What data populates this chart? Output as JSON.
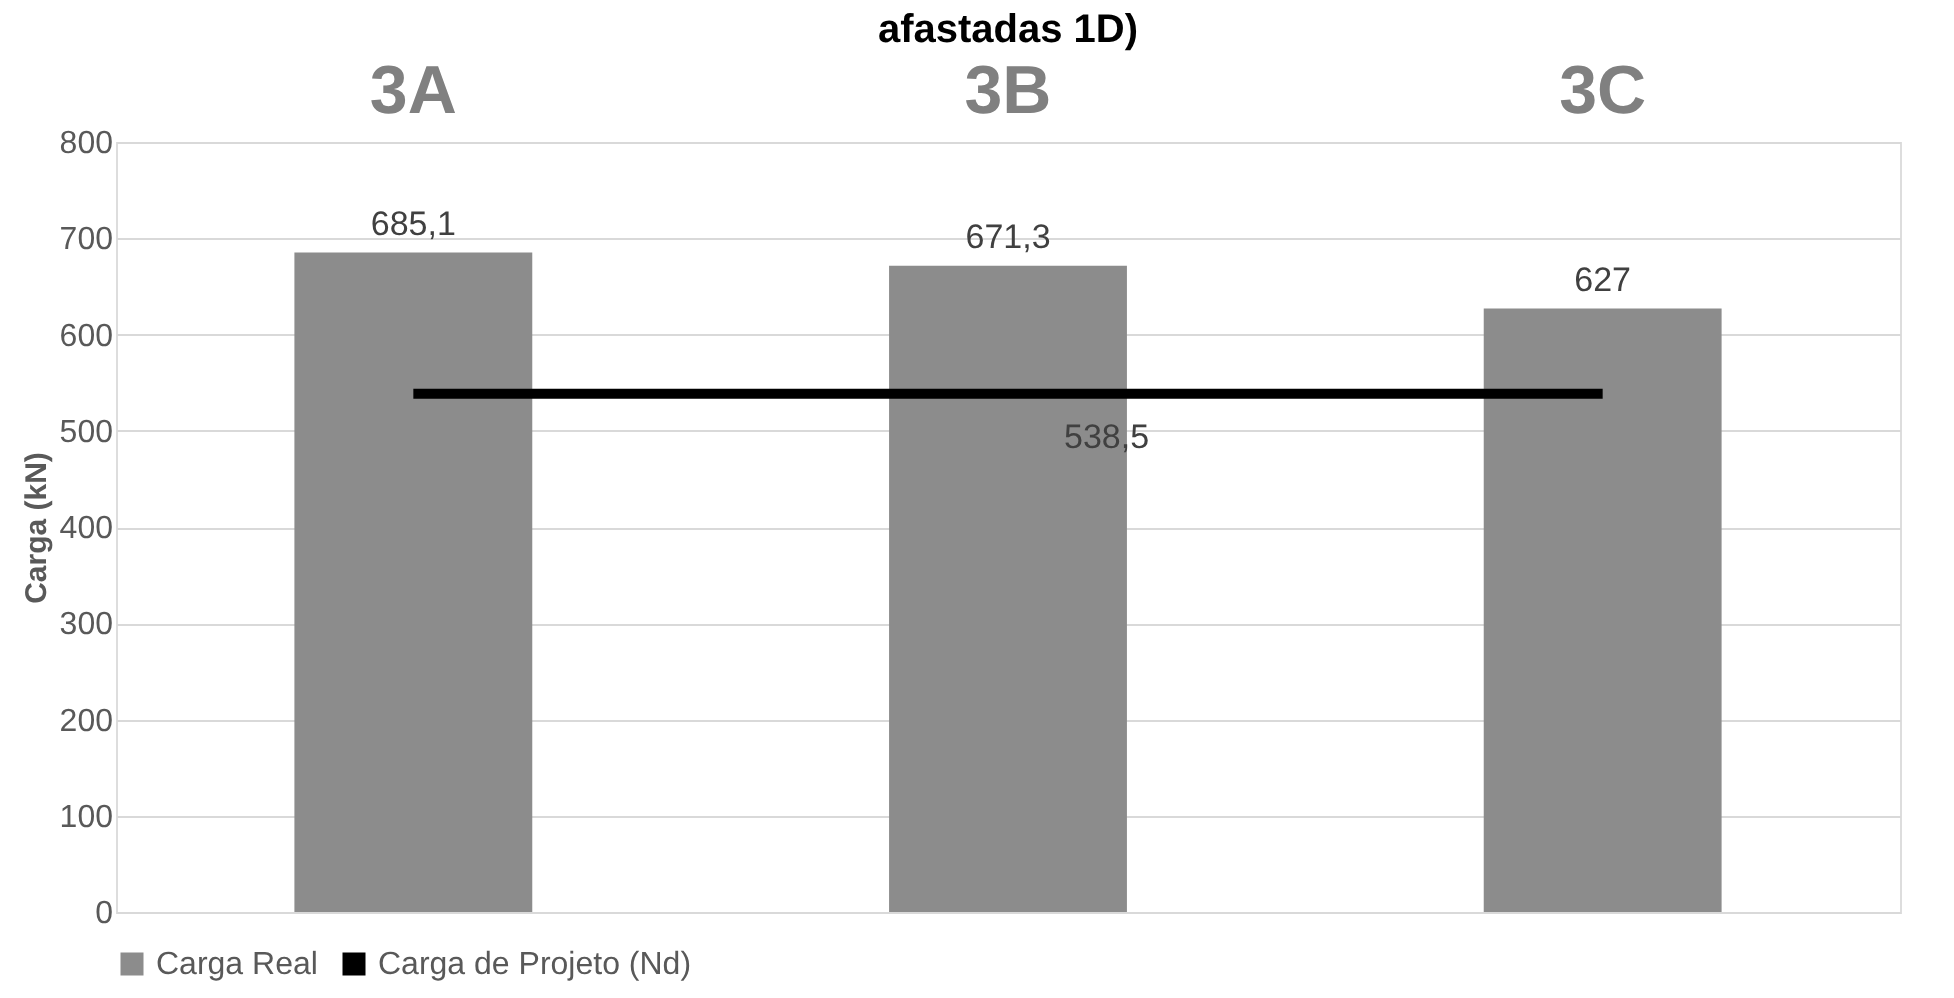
{
  "chart_data": {
    "type": "bar",
    "title": "afastadas 1D)",
    "ylabel": "Carga (kN)",
    "categories": [
      "3A",
      "3B",
      "3C"
    ],
    "series": [
      {
        "name": "Carga Real",
        "color": "#8c8c8c",
        "values": [
          685.1,
          671.3,
          627
        ],
        "value_labels": [
          "685,1",
          "671,3",
          "627"
        ]
      },
      {
        "name": "Carga de Projeto (Nd)",
        "type": "line",
        "color": "#000000",
        "values": [
          538.5,
          538.5,
          538.5
        ],
        "value_labels": [
          null,
          "538,5",
          null
        ]
      }
    ],
    "ylim": [
      0,
      800
    ],
    "yticks": [
      0,
      100,
      200,
      300,
      400,
      500,
      600,
      700,
      800
    ],
    "grid": "y",
    "legend": "bottom"
  }
}
